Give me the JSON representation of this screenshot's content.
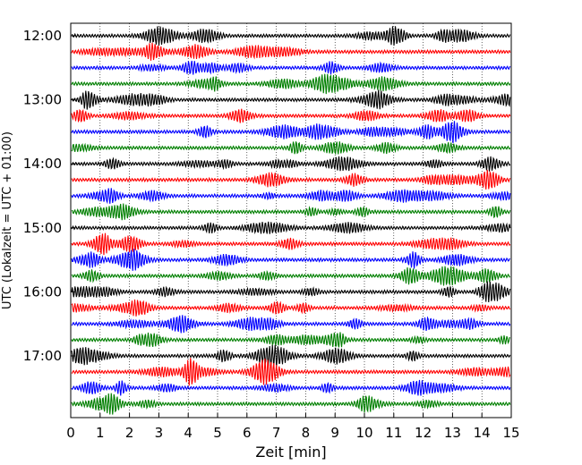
{
  "chart_data": {
    "type": "line",
    "chart_kind": "seismogram helicorder",
    "xlabel": "Zeit  [min]",
    "ylabel": "UTC (Lokalzeit = UTC + 01:00)",
    "xlim": [
      0,
      15
    ],
    "x_ticks": [
      "0",
      "1",
      "2",
      "3",
      "4",
      "5",
      "6",
      "7",
      "8",
      "9",
      "10",
      "11",
      "12",
      "13",
      "14",
      "15"
    ],
    "y_tick_labels": [
      "12:00",
      "13:00",
      "14:00",
      "15:00",
      "16:00",
      "17:00"
    ],
    "grid": "vertical dotted lines at each minute",
    "trace_interval_minutes": 15,
    "trace_start_times": [
      "12:00",
      "12:15",
      "12:30",
      "12:45",
      "13:00",
      "13:15",
      "13:30",
      "13:45",
      "14:00",
      "14:15",
      "14:30",
      "14:45",
      "15:00",
      "15:15",
      "15:30",
      "15:45",
      "16:00",
      "16:15",
      "16:30",
      "16:45",
      "17:00",
      "17:15",
      "17:30",
      "17:45"
    ],
    "trace_colors": [
      "#000000",
      "#ff0000",
      "#0000ff",
      "#007f00"
    ],
    "trace_color_names": [
      "black",
      "red",
      "blue",
      "green"
    ]
  }
}
